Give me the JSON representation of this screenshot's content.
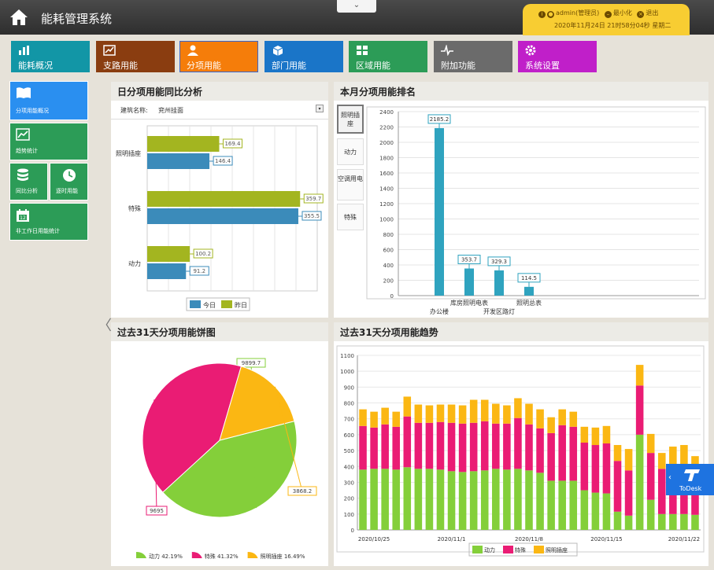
{
  "app": {
    "title": "能耗管理系统"
  },
  "user": {
    "name": "admin(管理员)",
    "minimize": "最小化",
    "logout": "退出",
    "datetime": "2020年11月24日 21时58分04秒 星期二"
  },
  "nav": [
    {
      "label": "能耗概况",
      "color": "#1296a6"
    },
    {
      "label": "支路用能",
      "color": "#8a3d10"
    },
    {
      "label": "分项用能",
      "color": "#f57d0a"
    },
    {
      "label": "部门用能",
      "color": "#1a75c8"
    },
    {
      "label": "区域用能",
      "color": "#2c9c57"
    },
    {
      "label": "附加功能",
      "color": "#6b6b6b"
    },
    {
      "label": "系统设置",
      "color": "#c01fc9"
    }
  ],
  "sidebar": [
    "分项用能概况",
    "趋势统计",
    "同比分析",
    "逐时用能",
    "非工作日用能统计"
  ],
  "panels": {
    "daily": {
      "title": "日分项用能同比分析",
      "building_label": "建筑名称:",
      "building_value": "兖州挂面"
    },
    "ranking": {
      "title": "本月分项用能排名",
      "buttons": [
        "照明插座",
        "动力",
        "空调用电",
        "特殊"
      ]
    },
    "pie": {
      "title": "过去31天分项用能饼图"
    },
    "trend": {
      "title": "过去31天分项用能趋势"
    }
  },
  "chart_data": [
    {
      "type": "bar",
      "orientation": "horizontal",
      "categories": [
        "照明插座",
        "特殊",
        "动力"
      ],
      "series": [
        {
          "name": "今日",
          "color": "#3b8bba",
          "values": [
            146.4,
            355.5,
            91.2
          ]
        },
        {
          "name": "昨日",
          "color": "#a3b520",
          "values": [
            169.4,
            359.7,
            100.2
          ]
        }
      ],
      "xlim": [
        0,
        400
      ],
      "legend": "bottom"
    },
    {
      "type": "bar",
      "categories": [
        "办公楼",
        "库房照明电表",
        "开发区路灯",
        "照明总表"
      ],
      "values": [
        2185.2,
        353.7,
        329.3,
        114.5
      ],
      "ylim": [
        0,
        2400
      ],
      "yticks": [
        0,
        200,
        400,
        600,
        800,
        1000,
        1200,
        1400,
        1600,
        1800,
        2000,
        2200,
        2400
      ],
      "color": "#2fa3bf"
    },
    {
      "type": "pie",
      "slices": [
        {
          "name": "动力",
          "value": 9899.7,
          "percent": "42.19%",
          "color": "#84cf3a"
        },
        {
          "name": "特殊",
          "value": 9695,
          "percent": "41.32%",
          "color": "#ea1c74"
        },
        {
          "name": "照明插座",
          "value": 3868.2,
          "percent": "16.49%",
          "color": "#fbb713"
        }
      ],
      "legend": "bottom"
    },
    {
      "type": "bar",
      "stacked": true,
      "ylim": [
        0,
        1100
      ],
      "yticks": [
        0,
        100,
        200,
        300,
        400,
        500,
        600,
        700,
        800,
        900,
        1000,
        1100
      ],
      "xticks": [
        "2020/10/25",
        "2020/11/1",
        "2020/11/8",
        "2020/11/15",
        "2020/11/22"
      ],
      "series": [
        {
          "name": "动力",
          "color": "#84cf3a",
          "values": [
            380,
            385,
            385,
            380,
            395,
            385,
            385,
            380,
            370,
            365,
            370,
            375,
            385,
            380,
            385,
            375,
            360,
            310,
            310,
            310,
            250,
            235,
            230,
            115,
            90,
            600,
            190,
            100,
            100,
            100,
            95
          ]
        },
        {
          "name": "特殊",
          "color": "#ea1c74",
          "values": [
            275,
            260,
            280,
            270,
            320,
            290,
            290,
            300,
            305,
            305,
            305,
            310,
            285,
            290,
            320,
            290,
            280,
            300,
            350,
            340,
            300,
            300,
            315,
            320,
            285,
            310,
            295,
            285,
            305,
            310,
            260
          ]
        },
        {
          "name": "照明插座",
          "color": "#fbb713",
          "values": [
            105,
            100,
            105,
            95,
            125,
            115,
            110,
            110,
            115,
            115,
            145,
            135,
            125,
            115,
            125,
            130,
            120,
            100,
            100,
            95,
            100,
            110,
            110,
            100,
            135,
            130,
            120,
            100,
            120,
            125,
            110
          ]
        }
      ],
      "legend": "bottom"
    }
  ],
  "misc": {
    "todesk": "ToDesk"
  }
}
